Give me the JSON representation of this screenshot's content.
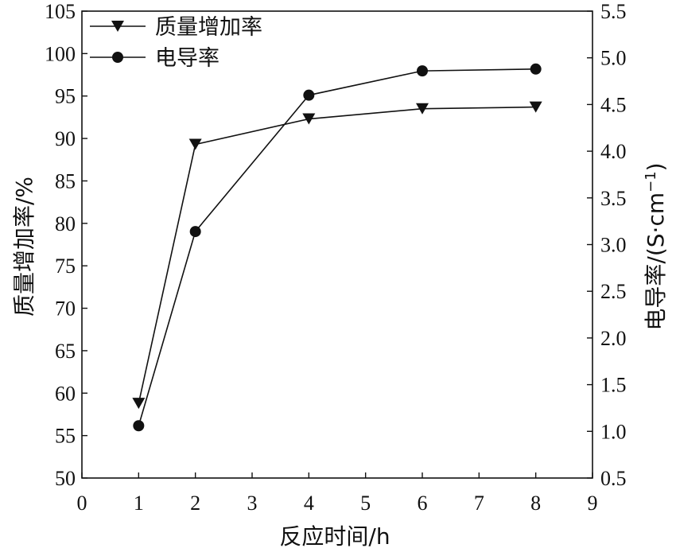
{
  "chart_data": {
    "type": "line",
    "xlabel": "反应时间/h",
    "ylabel_left": "质量增加率/%",
    "ylabel_right_main": "电导率/(S·cm",
    "ylabel_right_sup": "−1",
    "ylabel_right_close": ")",
    "xlim": [
      0,
      9
    ],
    "ylim_left": [
      50,
      105
    ],
    "ylim_right": [
      0.5,
      5.5
    ],
    "x_ticks": [
      "0",
      "1",
      "2",
      "3",
      "4",
      "5",
      "6",
      "7",
      "8",
      "9"
    ],
    "y_left_ticks": [
      "50",
      "55",
      "60",
      "65",
      "70",
      "75",
      "80",
      "85",
      "90",
      "95",
      "100",
      "105"
    ],
    "y_right_ticks": [
      "0.5",
      "1.0",
      "1.5",
      "2.0",
      "2.5",
      "3.0",
      "3.5",
      "4.0",
      "4.5",
      "5.0",
      "5.5"
    ],
    "legend_position": "top-left",
    "grid": false,
    "series": [
      {
        "name": "质量增加率",
        "axis": "left",
        "marker": "triangle-down",
        "x": [
          1,
          2,
          4,
          6,
          8
        ],
        "y": [
          58.8,
          89.3,
          92.3,
          93.5,
          93.7
        ]
      },
      {
        "name": "电导率",
        "axis": "right",
        "marker": "circle",
        "x": [
          1,
          2,
          4,
          6,
          8
        ],
        "y": [
          1.06,
          3.14,
          4.6,
          4.86,
          4.88
        ]
      }
    ]
  }
}
